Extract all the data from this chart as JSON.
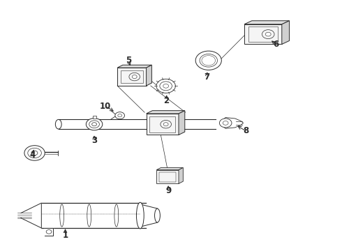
{
  "bg_color": "#ffffff",
  "lc": "#2a2a2a",
  "lw": 0.7,
  "figsize": [
    4.9,
    3.6
  ],
  "dpi": 100,
  "labels": {
    "1": [
      0.185,
      0.055,
      0.185,
      0.082
    ],
    "2": [
      0.495,
      0.565,
      0.495,
      0.59
    ],
    "3": [
      0.265,
      0.435,
      0.265,
      0.458
    ],
    "4": [
      0.095,
      0.385,
      0.095,
      0.408
    ],
    "5": [
      0.395,
      0.75,
      0.395,
      0.775
    ],
    "6": [
      0.79,
      0.84,
      0.79,
      0.863
    ],
    "7": [
      0.6,
      0.7,
      0.6,
      0.723
    ],
    "8": [
      0.71,
      0.495,
      0.71,
      0.518
    ],
    "9": [
      0.49,
      0.22,
      0.49,
      0.243
    ],
    "10": [
      0.31,
      0.59,
      0.31,
      0.612
    ]
  }
}
